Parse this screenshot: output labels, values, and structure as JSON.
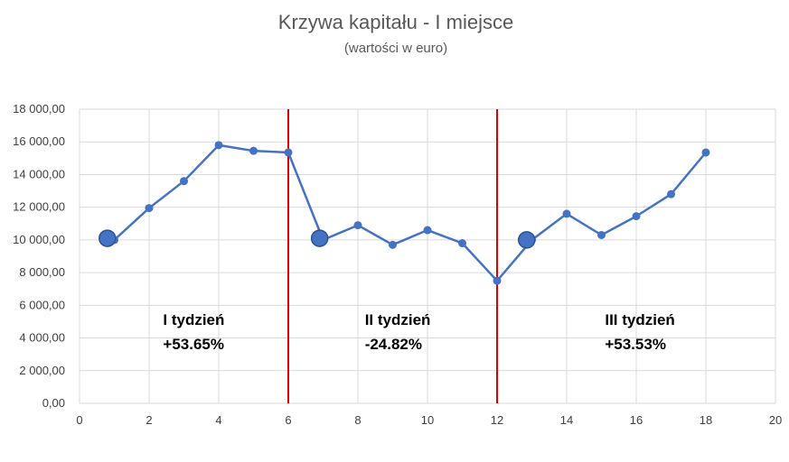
{
  "chart_data": {
    "type": "scatter",
    "title": "Krzywa kapitału - I miejsce",
    "subtitle": "(wartości w euro)",
    "xlabel": "",
    "ylabel": "",
    "xlim": [
      0,
      20
    ],
    "ylim": [
      0,
      18000
    ],
    "xticks": [
      0,
      2,
      4,
      6,
      8,
      10,
      12,
      14,
      16,
      18,
      20
    ],
    "yticks": [
      0,
      2000,
      4000,
      6000,
      8000,
      10000,
      12000,
      14000,
      16000,
      18000
    ],
    "ytick_labels": [
      "0,00",
      "2 000,00",
      "4 000,00",
      "6 000,00",
      "8 000,00",
      "10 000,00",
      "12 000,00",
      "14 000,00",
      "16 000,00",
      "18 000,00"
    ],
    "grid": true,
    "legend": "none",
    "series": [
      {
        "color": "#4472C4",
        "x": [
          1,
          2,
          3,
          4,
          5,
          6,
          7,
          8,
          9,
          10,
          11,
          12,
          13,
          14,
          15,
          16,
          17,
          18
        ],
        "y": [
          10000,
          11950,
          13600,
          15800,
          15450,
          15350,
          10000,
          10900,
          9700,
          10600,
          9800,
          7500,
          10000,
          11600,
          10300,
          11450,
          12800,
          15350
        ]
      }
    ],
    "start_markers": [
      {
        "x": 0.8,
        "y": 10100
      },
      {
        "x": 6.9,
        "y": 10100
      },
      {
        "x": 12.85,
        "y": 10000
      }
    ],
    "vertical_lines": [
      {
        "x": 6,
        "color": "#E00000"
      },
      {
        "x": 12,
        "color": "#E00000"
      }
    ],
    "annotations": [
      {
        "line1": "I tydzień",
        "line2": "+53.65%",
        "x": 2.4,
        "y": 4800
      },
      {
        "line1": "II tydzień",
        "line2": "-24.82%",
        "x": 8.2,
        "y": 4800
      },
      {
        "line1": "III tydzień",
        "line2": "+53.53%",
        "x": 15.1,
        "y": 4800
      }
    ]
  }
}
